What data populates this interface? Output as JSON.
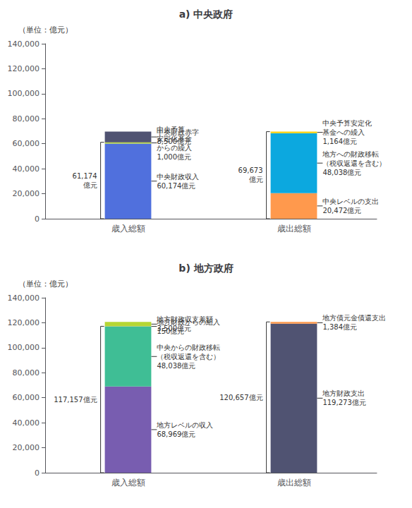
{
  "chart_data": [
    {
      "type": "bar",
      "stacked": true,
      "title": "a) 中央政府",
      "ylabel": "（単位：億元）",
      "categories": [
        "歳入総額",
        "歳出総額"
      ],
      "ylim": [
        0,
        140000
      ],
      "yticks": [
        0,
        {
          "value": 20000,
          "label": "20,000"
        },
        {
          "value": 40000,
          "label": "40,000"
        },
        {
          "value": 60000,
          "label": "60,000"
        },
        {
          "value": 80000,
          "label": "80,000"
        },
        {
          "value": 100000,
          "label": "100,000"
        },
        {
          "value": 120000,
          "label": "120,000"
        },
        {
          "value": 140000,
          "label": "140,000"
        }
      ],
      "grid": false,
      "series": [
        {
          "annotation": "中央財政収入\n60,174億元",
          "values": [
            60174,
            null
          ]
        },
        {
          "annotation": "中央予算\n安定化基金\nからの繰入\n1,000億元",
          "values": [
            1000,
            null
          ]
        },
        {
          "annotation": "中央財政赤字\n8,500億元",
          "values": [
            8500,
            null
          ]
        },
        {
          "annotation": "中央レベルの支出\n20,472億元",
          "values": [
            null,
            20472
          ]
        },
        {
          "annotation": "地方への財政移転\n（税収返還を含む）\n48,038億元",
          "values": [
            null,
            48038
          ]
        },
        {
          "annotation": "中央予算安定化\n基金への繰入\n1,164億元",
          "values": [
            null,
            1164
          ]
        }
      ],
      "annotations": [
        {
          "text": "61,174\n億元",
          "category": "歳入総額",
          "value": 61174
        },
        {
          "text": "69,673\n億元",
          "category": "歳出総額",
          "value": 69673
        }
      ]
    },
    {
      "type": "bar",
      "stacked": true,
      "title": "b) 地方政府",
      "ylabel": "（単位：億元）",
      "categories": [
        "歳入総額",
        "歳出総額"
      ],
      "ylim": [
        0,
        140000
      ],
      "yticks": [
        0,
        {
          "value": 20000,
          "label": "20,000"
        },
        {
          "value": 40000,
          "label": "40,000"
        },
        {
          "value": 60000,
          "label": "60,000"
        },
        {
          "value": 80000,
          "label": "80,000"
        },
        {
          "value": 100000,
          "label": "100,000"
        },
        {
          "value": 120000,
          "label": "120,000"
        },
        {
          "value": 140000,
          "label": "140,000"
        }
      ],
      "grid": false,
      "series": [
        {
          "annotation": "地方レベルの収入\n68,969億元",
          "values": [
            68969,
            null
          ]
        },
        {
          "annotation": "中央からの財政移転\n（税収返還を含む）\n48,038億元",
          "values": [
            48038,
            null
          ]
        },
        {
          "annotation": "地方財政からの組入\n150億元",
          "values": [
            150,
            null
          ]
        },
        {
          "annotation": "地方財政収支差額\n3,500億元",
          "values": [
            3500,
            null
          ]
        },
        {
          "annotation": "地方財政支出\n119,273億元",
          "values": [
            null,
            119273
          ]
        },
        {
          "annotation": "地方債元金債還支出\n1,384億元",
          "values": [
            null,
            1384
          ]
        }
      ],
      "annotations": [
        {
          "text": "117,157億元",
          "category": "歳入総額",
          "value": 117157
        },
        {
          "text": "120,657億元",
          "category": "歳出総額",
          "value": 120657
        }
      ]
    }
  ]
}
